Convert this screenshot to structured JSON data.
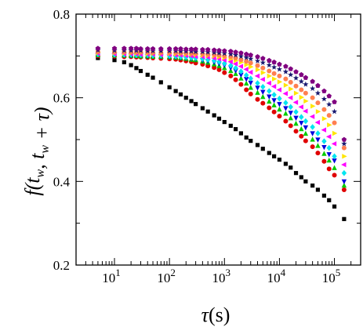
{
  "chart_data": {
    "type": "scatter",
    "xscale": "log",
    "xlim": [
      2,
      300000
    ],
    "ylim": [
      0.2,
      0.8
    ],
    "grid": false,
    "legend": "none",
    "xlabel_main": "τ",
    "xlabel_unit": "(s)",
    "ylabel": "f(t w , t w + τ)",
    "x_ticks": [
      {
        "value": 10,
        "label": "10",
        "exp": "1"
      },
      {
        "value": 100,
        "label": "10",
        "exp": "2"
      },
      {
        "value": 1000,
        "label": "10",
        "exp": "3"
      },
      {
        "value": 10000,
        "label": "10",
        "exp": "4"
      },
      {
        "value": 100000,
        "label": "10",
        "exp": "5"
      }
    ],
    "y_ticks": [
      {
        "value": 0.2,
        "label": "0.2"
      },
      {
        "value": 0.4,
        "label": "0.4"
      },
      {
        "value": 0.6,
        "label": "0.6"
      },
      {
        "value": 0.8,
        "label": "0.8"
      }
    ],
    "x": [
      5,
      10,
      15,
      20,
      25,
      30,
      40,
      50,
      70,
      100,
      130,
      160,
      200,
      250,
      300,
      400,
      500,
      650,
      800,
      1000,
      1300,
      1600,
      2000,
      2500,
      3000,
      4000,
      5000,
      6500,
      8000,
      10000,
      13000,
      16000,
      20000,
      25000,
      30000,
      40000,
      50000,
      65000,
      80000,
      100000,
      150000
    ],
    "series": [
      {
        "color": "#000000",
        "marker": "square",
        "values": [
          0.695,
          0.69,
          0.685,
          0.678,
          0.671,
          0.664,
          0.655,
          0.648,
          0.637,
          0.625,
          0.616,
          0.608,
          0.6,
          0.592,
          0.585,
          0.575,
          0.567,
          0.558,
          0.55,
          0.542,
          0.533,
          0.525,
          0.515,
          0.505,
          0.497,
          0.487,
          0.478,
          0.468,
          0.46,
          0.452,
          0.442,
          0.433,
          0.42,
          0.41,
          0.4,
          0.39,
          0.38,
          0.366,
          0.355,
          0.34,
          0.31
        ]
      },
      {
        "color": "#e00000",
        "marker": "circle",
        "values": [
          0.7,
          0.699,
          0.698,
          0.698,
          0.697,
          0.697,
          0.696,
          0.695,
          0.694,
          0.693,
          0.692,
          0.69,
          0.688,
          0.686,
          0.683,
          0.68,
          0.676,
          0.672,
          0.667,
          0.66,
          0.652,
          0.643,
          0.632,
          0.619,
          0.609,
          0.596,
          0.587,
          0.576,
          0.566,
          0.556,
          0.544,
          0.533,
          0.52,
          0.508,
          0.497,
          0.483,
          0.468,
          0.448,
          0.43,
          0.415,
          0.38
        ]
      },
      {
        "color": "#00cc00",
        "marker": "triangle-up",
        "values": [
          0.702,
          0.701,
          0.701,
          0.7,
          0.7,
          0.699,
          0.699,
          0.698,
          0.698,
          0.697,
          0.696,
          0.695,
          0.693,
          0.691,
          0.69,
          0.687,
          0.684,
          0.68,
          0.676,
          0.671,
          0.664,
          0.657,
          0.646,
          0.634,
          0.624,
          0.612,
          0.602,
          0.591,
          0.582,
          0.572,
          0.562,
          0.551,
          0.538,
          0.525,
          0.514,
          0.5,
          0.485,
          0.466,
          0.45,
          0.432,
          0.39
        ]
      },
      {
        "color": "#0000dd",
        "marker": "triangle-down",
        "values": [
          0.703,
          0.702,
          0.702,
          0.701,
          0.701,
          0.701,
          0.7,
          0.7,
          0.699,
          0.698,
          0.697,
          0.696,
          0.695,
          0.694,
          0.693,
          0.69,
          0.688,
          0.685,
          0.682,
          0.678,
          0.672,
          0.665,
          0.655,
          0.645,
          0.636,
          0.624,
          0.614,
          0.603,
          0.594,
          0.585,
          0.575,
          0.564,
          0.552,
          0.54,
          0.529,
          0.515,
          0.5,
          0.482,
          0.465,
          0.45,
          0.4
        ]
      },
      {
        "color": "#00e5f0",
        "marker": "diamond",
        "values": [
          0.704,
          0.703,
          0.703,
          0.703,
          0.702,
          0.702,
          0.702,
          0.701,
          0.701,
          0.7,
          0.699,
          0.698,
          0.697,
          0.696,
          0.695,
          0.693,
          0.691,
          0.689,
          0.686,
          0.682,
          0.677,
          0.671,
          0.663,
          0.654,
          0.646,
          0.635,
          0.626,
          0.616,
          0.607,
          0.598,
          0.588,
          0.578,
          0.566,
          0.554,
          0.544,
          0.53,
          0.515,
          0.496,
          0.48,
          0.46,
          0.42
        ]
      },
      {
        "color": "#ff00ff",
        "marker": "triangle-left",
        "values": [
          0.706,
          0.705,
          0.705,
          0.705,
          0.705,
          0.704,
          0.704,
          0.704,
          0.703,
          0.703,
          0.702,
          0.702,
          0.701,
          0.7,
          0.699,
          0.698,
          0.697,
          0.695,
          0.693,
          0.69,
          0.686,
          0.681,
          0.675,
          0.668,
          0.661,
          0.652,
          0.644,
          0.635,
          0.627,
          0.619,
          0.61,
          0.6,
          0.589,
          0.578,
          0.568,
          0.555,
          0.541,
          0.523,
          0.507,
          0.49,
          0.44
        ]
      },
      {
        "color": "#ffe600",
        "marker": "triangle-right",
        "values": [
          0.708,
          0.708,
          0.707,
          0.707,
          0.707,
          0.707,
          0.706,
          0.706,
          0.706,
          0.706,
          0.705,
          0.705,
          0.704,
          0.704,
          0.703,
          0.702,
          0.701,
          0.7,
          0.698,
          0.696,
          0.693,
          0.689,
          0.685,
          0.679,
          0.674,
          0.667,
          0.66,
          0.652,
          0.645,
          0.638,
          0.63,
          0.621,
          0.611,
          0.601,
          0.592,
          0.58,
          0.567,
          0.55,
          0.535,
          0.515,
          0.46
        ]
      },
      {
        "color": "#ff7f50",
        "marker": "circle",
        "values": [
          0.71,
          0.709,
          0.709,
          0.709,
          0.709,
          0.709,
          0.709,
          0.708,
          0.708,
          0.708,
          0.708,
          0.707,
          0.707,
          0.706,
          0.706,
          0.705,
          0.704,
          0.703,
          0.702,
          0.7,
          0.698,
          0.695,
          0.691,
          0.687,
          0.683,
          0.677,
          0.671,
          0.664,
          0.658,
          0.652,
          0.645,
          0.637,
          0.628,
          0.619,
          0.611,
          0.6,
          0.588,
          0.572,
          0.558,
          0.54,
          0.48
        ]
      },
      {
        "color": "#191970",
        "marker": "star",
        "values": [
          0.714,
          0.713,
          0.713,
          0.713,
          0.713,
          0.713,
          0.712,
          0.712,
          0.712,
          0.712,
          0.712,
          0.711,
          0.711,
          0.711,
          0.71,
          0.71,
          0.709,
          0.708,
          0.707,
          0.706,
          0.704,
          0.702,
          0.699,
          0.696,
          0.693,
          0.688,
          0.684,
          0.678,
          0.673,
          0.668,
          0.662,
          0.655,
          0.647,
          0.639,
          0.632,
          0.622,
          0.611,
          0.597,
          0.584,
          0.567,
          0.49
        ]
      },
      {
        "color": "#800080",
        "marker": "pentagon",
        "values": [
          0.718,
          0.718,
          0.718,
          0.718,
          0.718,
          0.717,
          0.717,
          0.717,
          0.717,
          0.717,
          0.717,
          0.717,
          0.716,
          0.716,
          0.716,
          0.715,
          0.715,
          0.714,
          0.713,
          0.712,
          0.711,
          0.709,
          0.707,
          0.704,
          0.702,
          0.698,
          0.694,
          0.689,
          0.685,
          0.68,
          0.675,
          0.669,
          0.662,
          0.655,
          0.648,
          0.639,
          0.629,
          0.616,
          0.604,
          0.59,
          0.5
        ]
      }
    ]
  }
}
